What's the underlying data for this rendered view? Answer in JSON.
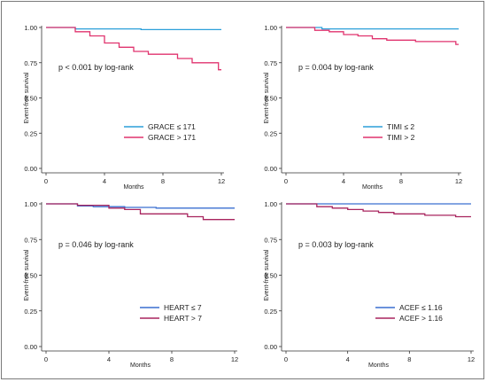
{
  "chart_data": [
    {
      "type": "line",
      "step": true,
      "ylabel": "Event-free survival",
      "xlabel": "Months",
      "xlim": [
        0,
        12
      ],
      "ylim": [
        0,
        1
      ],
      "x_ticks": [
        "0",
        "4",
        "8",
        "12"
      ],
      "y_ticks": [
        "0.00",
        "0.25",
        "0.50",
        "0.75",
        "1.00"
      ],
      "grid": false,
      "legend_position": "bottom-right",
      "annotation": "p < 0.001 by log-rank",
      "series": [
        {
          "name": "GRACE ≤ 171",
          "color": "#2b9fd9",
          "points": [
            [
              0,
              1.0
            ],
            [
              2,
              1.0
            ],
            [
              2,
              0.99
            ],
            [
              6.5,
              0.99
            ],
            [
              6.5,
              0.985
            ],
            [
              12,
              0.985
            ]
          ]
        },
        {
          "name": "GRACE > 171",
          "color": "#e0336e",
          "points": [
            [
              0,
              1.0
            ],
            [
              2,
              1.0
            ],
            [
              2,
              0.97
            ],
            [
              3,
              0.97
            ],
            [
              3,
              0.94
            ],
            [
              4,
              0.94
            ],
            [
              4,
              0.89
            ],
            [
              5,
              0.89
            ],
            [
              5,
              0.86
            ],
            [
              6,
              0.86
            ],
            [
              6,
              0.83
            ],
            [
              7,
              0.83
            ],
            [
              7,
              0.81
            ],
            [
              9,
              0.81
            ],
            [
              9,
              0.78
            ],
            [
              10,
              0.78
            ],
            [
              10,
              0.75
            ],
            [
              11.8,
              0.75
            ],
            [
              11.8,
              0.7
            ],
            [
              12,
              0.7
            ]
          ]
        }
      ]
    },
    {
      "type": "line",
      "step": true,
      "ylabel": "Event-free survival",
      "xlabel": "Months",
      "xlim": [
        0,
        12
      ],
      "ylim": [
        0,
        1
      ],
      "x_ticks": [
        "0",
        "4",
        "8",
        "12"
      ],
      "y_ticks": [
        "0.00",
        "0.25",
        "0.50",
        "0.75",
        "1.00"
      ],
      "grid": false,
      "legend_position": "bottom-right",
      "annotation": "p = 0.004 by log-rank",
      "series": [
        {
          "name": "TIMI ≤ 2",
          "color": "#2b9fd9",
          "points": [
            [
              0,
              1.0
            ],
            [
              2.5,
              1.0
            ],
            [
              2.5,
              0.99
            ],
            [
              12,
              0.99
            ]
          ]
        },
        {
          "name": "TIMI > 2",
          "color": "#e0336e",
          "points": [
            [
              0,
              1.0
            ],
            [
              2,
              1.0
            ],
            [
              2,
              0.98
            ],
            [
              3,
              0.98
            ],
            [
              3,
              0.97
            ],
            [
              4,
              0.97
            ],
            [
              4,
              0.95
            ],
            [
              5,
              0.95
            ],
            [
              5,
              0.94
            ],
            [
              6,
              0.94
            ],
            [
              6,
              0.92
            ],
            [
              7,
              0.92
            ],
            [
              7,
              0.91
            ],
            [
              9,
              0.91
            ],
            [
              9,
              0.9
            ],
            [
              11.8,
              0.9
            ],
            [
              11.8,
              0.88
            ],
            [
              12,
              0.88
            ]
          ]
        }
      ]
    },
    {
      "type": "line",
      "step": true,
      "ylabel": "Event-free survival",
      "xlabel": "Months",
      "xlim": [
        0,
        12
      ],
      "ylim": [
        0,
        1
      ],
      "x_ticks": [
        "0",
        "4",
        "8",
        "12"
      ],
      "y_ticks": [
        "0.00",
        "0.25",
        "0.50",
        "0.75",
        "1.00"
      ],
      "grid": false,
      "legend_position": "bottom-right",
      "annotation": "p = 0.046 by log-rank",
      "series": [
        {
          "name": "HEART ≤ 7",
          "color": "#3a6fd0",
          "points": [
            [
              0,
              1.0
            ],
            [
              2,
              1.0
            ],
            [
              2,
              0.985
            ],
            [
              3,
              0.985
            ],
            [
              3,
              0.98
            ],
            [
              5,
              0.98
            ],
            [
              5,
              0.975
            ],
            [
              7,
              0.975
            ],
            [
              7,
              0.97
            ],
            [
              12,
              0.97
            ]
          ]
        },
        {
          "name": "HEART > 7",
          "color": "#a8245e",
          "points": [
            [
              0,
              1.0
            ],
            [
              2,
              1.0
            ],
            [
              2,
              0.99
            ],
            [
              4,
              0.99
            ],
            [
              4,
              0.97
            ],
            [
              5,
              0.97
            ],
            [
              5,
              0.96
            ],
            [
              6,
              0.96
            ],
            [
              6,
              0.93
            ],
            [
              9,
              0.93
            ],
            [
              9,
              0.91
            ],
            [
              10,
              0.91
            ],
            [
              10,
              0.89
            ],
            [
              12,
              0.89
            ]
          ]
        }
      ]
    },
    {
      "type": "line",
      "step": true,
      "ylabel": "Event-free survival",
      "xlabel": "Months",
      "xlim": [
        0,
        12
      ],
      "ylim": [
        0,
        1
      ],
      "x_ticks": [
        "0",
        "4",
        "8",
        "12"
      ],
      "y_ticks": [
        "0.00",
        "0.25",
        "0.50",
        "0.75",
        "1.00"
      ],
      "grid": false,
      "legend_position": "bottom-right",
      "annotation": "p = 0.003 by log-rank",
      "series": [
        {
          "name": "ACEF ≤ 1.16",
          "color": "#3a6fd0",
          "points": [
            [
              0,
              1.0
            ],
            [
              12,
              1.0
            ]
          ]
        },
        {
          "name": "ACEF > 1.16",
          "color": "#a8245e",
          "points": [
            [
              0,
              1.0
            ],
            [
              2,
              1.0
            ],
            [
              2,
              0.98
            ],
            [
              3,
              0.98
            ],
            [
              3,
              0.97
            ],
            [
              4,
              0.97
            ],
            [
              4,
              0.96
            ],
            [
              5,
              0.96
            ],
            [
              5,
              0.95
            ],
            [
              6,
              0.95
            ],
            [
              6,
              0.94
            ],
            [
              7,
              0.94
            ],
            [
              7,
              0.93
            ],
            [
              9,
              0.93
            ],
            [
              9,
              0.92
            ],
            [
              11,
              0.92
            ],
            [
              11,
              0.91
            ],
            [
              12,
              0.91
            ]
          ]
        }
      ]
    }
  ]
}
